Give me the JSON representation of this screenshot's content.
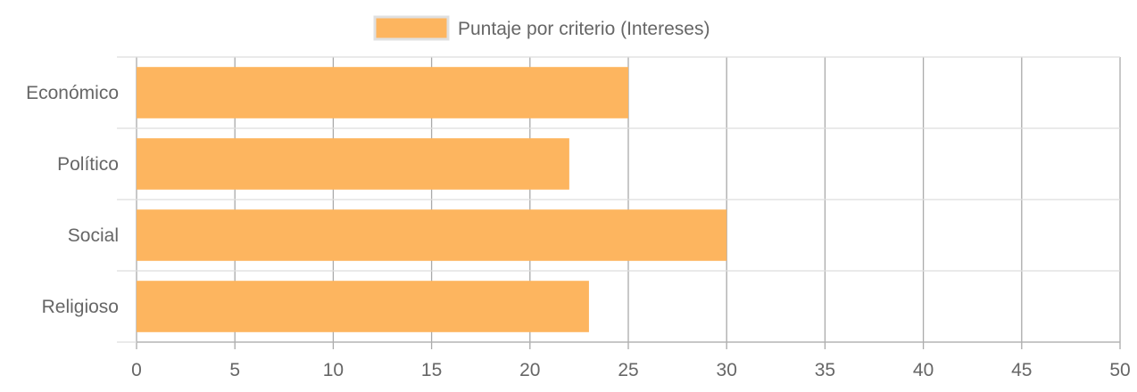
{
  "chart_data": {
    "type": "bar",
    "orientation": "horizontal",
    "categories": [
      "Económico",
      "Político",
      "Social",
      "Religioso"
    ],
    "series": [
      {
        "name": "Puntaje por criterio (Intereses)",
        "values": [
          25,
          22,
          30,
          23
        ],
        "color": "#FDB55F",
        "border_color": "#FDB55F"
      }
    ],
    "x_ticks": [
      "0",
      "5",
      "10",
      "15",
      "20",
      "25",
      "30",
      "35",
      "40",
      "45",
      "50"
    ],
    "xlim": [
      0,
      50
    ],
    "grid": true,
    "legend_position": "top",
    "title": "",
    "xlabel": "",
    "ylabel": ""
  },
  "colors": {
    "grid_x": "#aaaaaa",
    "grid_y": "#dddddd",
    "text": "#666666"
  }
}
